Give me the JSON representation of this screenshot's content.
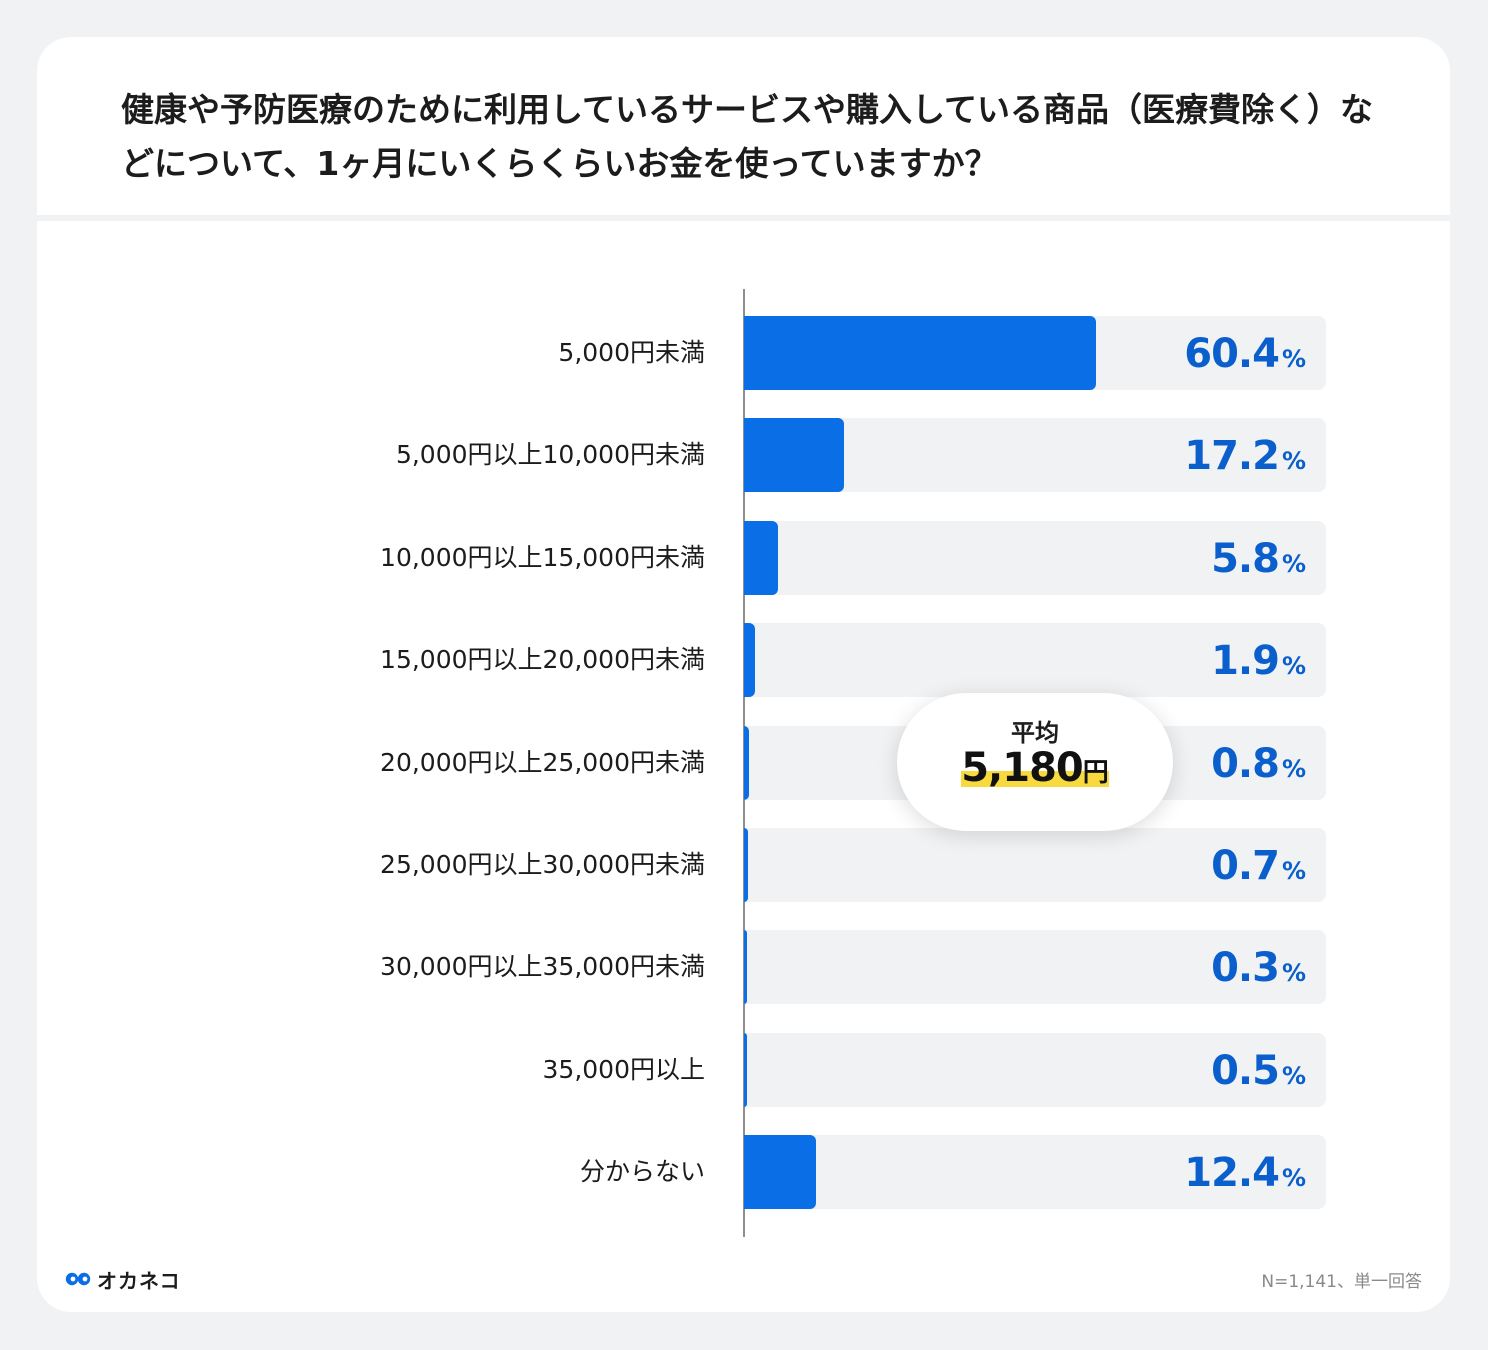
{
  "chart_data": {
    "type": "bar",
    "orientation": "horizontal",
    "title": "健康や予防医療のために利用しているサービスや購入している商品（医療費除く）などについて、1ヶ月にいくらくらいお金を使っていますか？",
    "categories": [
      "5,000円未満",
      "5,000円以上10,000円未満",
      "10,000円以上15,000円未満",
      "15,000円以上20,000円未満",
      "20,000円以上25,000円未満",
      "25,000円以上30,000円未満",
      "30,000円以上35,000円未満",
      "35,000円以上",
      "分からない"
    ],
    "values": [
      60.4,
      17.2,
      5.8,
      1.9,
      0.8,
      0.7,
      0.3,
      0.5,
      12.4
    ],
    "value_labels": [
      "60.4",
      "17.2",
      "5.8",
      "1.9",
      "0.8",
      "0.7",
      "0.3",
      "0.5",
      "12.4"
    ],
    "unit": "%",
    "xlim": [
      0,
      100
    ],
    "xlabel": "",
    "ylabel": "",
    "grid": false
  },
  "average": {
    "label": "平均",
    "value": "5,180",
    "unit": "円"
  },
  "footer": {
    "brand": "オカネコ",
    "note": "N=1,141、単一回答"
  },
  "colors": {
    "bar": "#0a6ee6",
    "value_text": "#0a5fcc",
    "track": "#f1f2f4",
    "highlight": "#f8da3e"
  }
}
